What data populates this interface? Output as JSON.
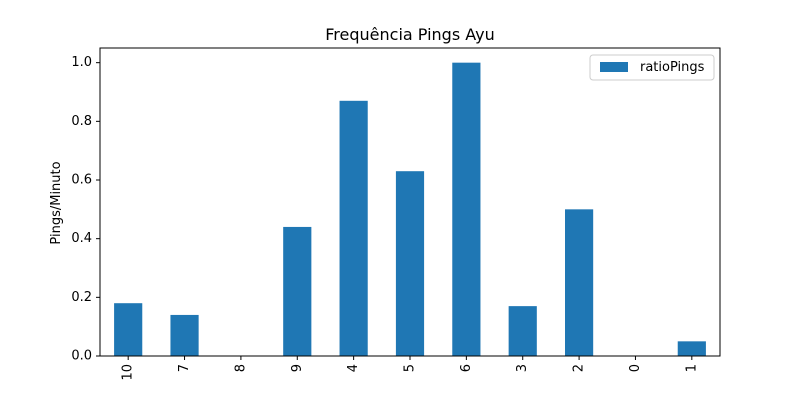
{
  "chart_data": {
    "type": "bar",
    "title": "Frequência Pings Ayu",
    "xlabel": "",
    "ylabel": "Pings/Minuto",
    "categories": [
      "10",
      "7",
      "8",
      "9",
      "4",
      "5",
      "6",
      "3",
      "2",
      "0",
      "1"
    ],
    "series": [
      {
        "name": "ratioPings",
        "values": [
          0.18,
          0.14,
          0.0,
          0.44,
          0.87,
          0.63,
          1.0,
          0.17,
          0.5,
          0.0,
          0.05
        ],
        "color": "#1f77b4"
      }
    ],
    "ylim": [
      0,
      1.05
    ],
    "yticks": [
      "0.0",
      "0.2",
      "0.4",
      "0.6",
      "0.8",
      "1.0"
    ],
    "grid": false,
    "legend_position": "top-right"
  }
}
